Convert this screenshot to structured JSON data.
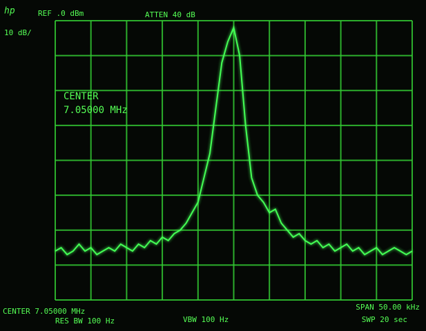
{
  "chart_data": {
    "type": "line",
    "brand": "hp",
    "annotations": [
      "REF .0 dBm",
      "ATTEN 40 dB",
      "10 dB/",
      "CENTER",
      "7.05000 MHz",
      "CENTER 7.05000 MHz",
      "RES BW 100 Hz",
      "VBW 100 Hz",
      "SPAN 50.00 kHz",
      "SWP 20  sec"
    ],
    "color": "#44ff55",
    "ylim": [
      -80,
      0
    ],
    "values": [
      -66,
      -65,
      -67,
      -66,
      -64,
      -66,
      -65,
      -67,
      -66,
      -65,
      -66,
      -64,
      -65,
      -66,
      -64,
      -65,
      -63,
      -64,
      -62,
      -63,
      -61,
      -60,
      -58,
      -55,
      -52,
      -45,
      -38,
      -25,
      -12,
      -6,
      -2,
      -10,
      -30,
      -45,
      -50,
      -52,
      -55,
      -54,
      -58,
      -60,
      -62,
      -61,
      -63,
      -64,
      -63,
      -65,
      -64,
      -66,
      -65,
      -64,
      -66,
      -65,
      -67,
      -66,
      -65,
      -67,
      -66,
      -65,
      -66,
      -67,
      -66
    ]
  }
}
